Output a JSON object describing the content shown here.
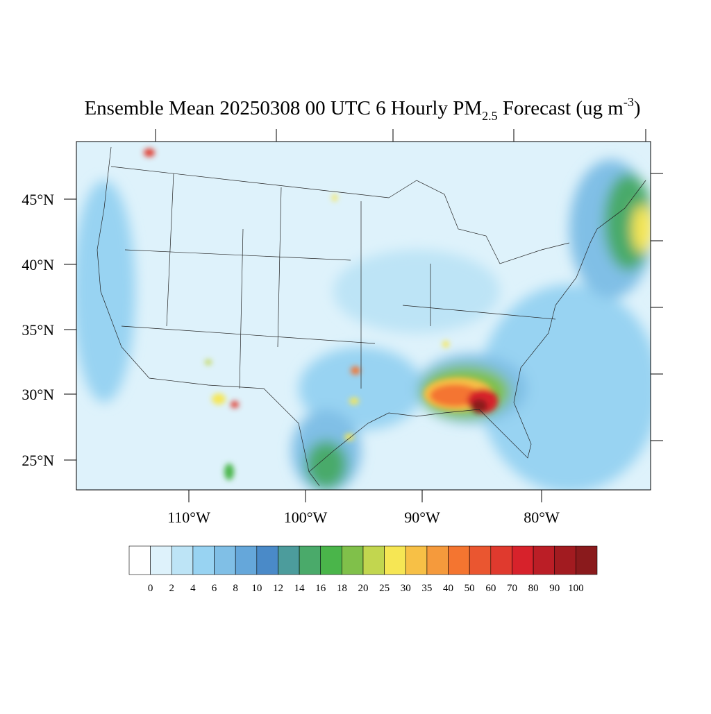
{
  "map": {
    "title": {
      "main": "Ensemble Mean 20250308 00 UTC 6 Hourly PM",
      "subscript": "2.5",
      "middle": " Forecast (ug m",
      "superscript": "-3",
      "end": ")"
    },
    "lat_labels": [
      "45°N",
      "40°N",
      "35°N",
      "30°N",
      "25°N"
    ],
    "lon_labels": [
      "110°W",
      "100°W",
      "90°W",
      "80°W"
    ],
    "colorbar": {
      "labels": [
        0,
        2,
        4,
        6,
        8,
        10,
        12,
        14,
        16,
        18,
        20,
        25,
        30,
        35,
        40,
        50,
        60,
        70,
        80,
        90,
        100
      ],
      "colors": [
        "#ffffff",
        "#def2fb",
        "#bde4f6",
        "#98d3f2",
        "#80bfe6",
        "#65a7da",
        "#4a8ac8",
        "#4c9c9c",
        "#4aaa6a",
        "#4ab54a",
        "#80c04a",
        "#c2d64f",
        "#f6e654",
        "#f7c046",
        "#f59a3c",
        "#f47530",
        "#ea5630",
        "#e03a2e",
        "#d7222b",
        "#bb1e26",
        "#a21b20",
        "#8a1a1c"
      ]
    }
  }
}
